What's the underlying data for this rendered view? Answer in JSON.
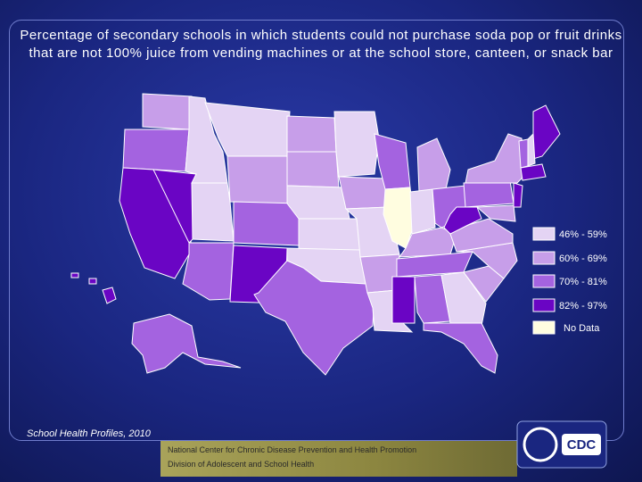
{
  "header": {
    "title": "Percentage of secondary schools in which students could not purchase soda pop or fruit drinks that are not 100% juice from vending machines or at the school store, canteen, or snack bar"
  },
  "legend": {
    "items": [
      {
        "label": "46% - 59%",
        "color": "#e4d4f4"
      },
      {
        "label": "60% - 69%",
        "color": "#c79ee9"
      },
      {
        "label": "70% - 81%",
        "color": "#a463e0"
      },
      {
        "label": "82% - 97%",
        "color": "#6a05c4"
      },
      {
        "label": "No Data",
        "color": "#fffde0"
      }
    ]
  },
  "source": "School Health Profiles, 2010",
  "footer": {
    "line1": "National Center for Chronic Disease Prevention and Health Promotion",
    "line2": "Division of Adolescent and School Health"
  },
  "logo": "CDC"
}
